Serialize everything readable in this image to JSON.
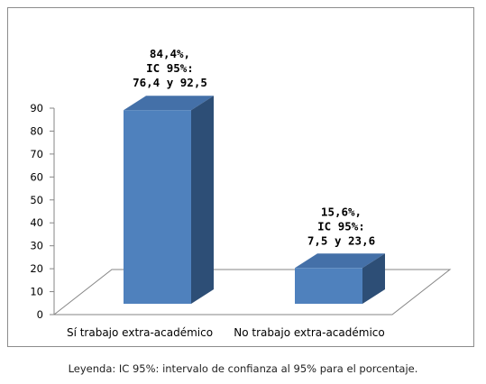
{
  "chart_data": {
    "type": "bar",
    "categories": [
      "Sí trabajo extra-académico",
      "No trabajo extra-académico"
    ],
    "values": [
      84.4,
      15.6
    ],
    "data_labels": [
      [
        "84,4%,",
        "IC 95%:",
        "76,4 y 92,5"
      ],
      [
        "15,6%,",
        "IC 95%:",
        "7,5 y 23,6"
      ]
    ],
    "y_ticks": [
      "0",
      "10",
      "20",
      "30",
      "40",
      "50",
      "60",
      "70",
      "80",
      "90"
    ],
    "ylim": [
      0,
      90
    ],
    "style": "3d-column",
    "grid": false,
    "legend": "none",
    "colors": {
      "bar_front": "#4f81bd",
      "bar_side": "#2d4e76",
      "bar_top": "#4470a8",
      "axis": "#868686"
    }
  },
  "caption": "Leyenda: IC 95%: intervalo de confianza al 95% para el porcentaje."
}
